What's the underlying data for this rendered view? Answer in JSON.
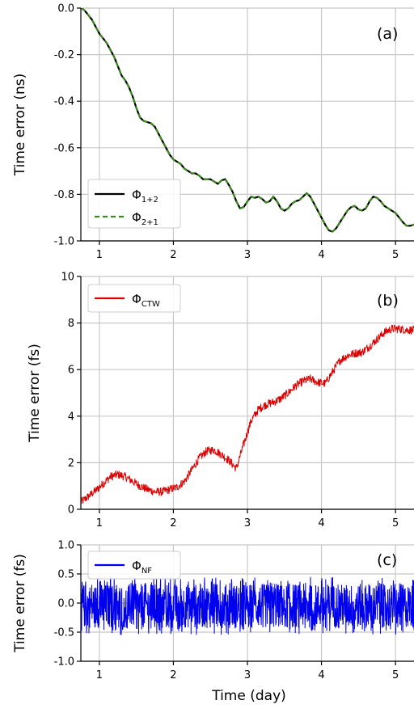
{
  "chart_data": [
    {
      "type": "line",
      "panel_label": "(a)",
      "ylabel": "Time error (ns)",
      "xlabel": "",
      "xlim": [
        0.75,
        5.25
      ],
      "ylim": [
        -1.0,
        0.0
      ],
      "xticks": [
        "1",
        "2",
        "3",
        "4",
        "5"
      ],
      "yticks": [
        "0.0",
        "-0.2",
        "-0.4",
        "-0.6",
        "-0.8",
        "-1.0"
      ],
      "grid": true,
      "legend_position": "lower-left",
      "series": [
        {
          "name": "Φ",
          "name_sub": "1+2",
          "color": "#000000",
          "style": "solid",
          "x": [
            0.76,
            0.8,
            0.85,
            0.9,
            0.95,
            1.0,
            1.05,
            1.1,
            1.15,
            1.2,
            1.25,
            1.3,
            1.35,
            1.4,
            1.45,
            1.5,
            1.55,
            1.6,
            1.65,
            1.7,
            1.75,
            1.8,
            1.85,
            1.9,
            1.95,
            2.0,
            2.05,
            2.1,
            2.15,
            2.2,
            2.25,
            2.3,
            2.35,
            2.4,
            2.45,
            2.5,
            2.55,
            2.6,
            2.65,
            2.7,
            2.75,
            2.8,
            2.85,
            2.9,
            2.95,
            3.0,
            3.05,
            3.1,
            3.15,
            3.2,
            3.25,
            3.3,
            3.35,
            3.4,
            3.45,
            3.5,
            3.55,
            3.6,
            3.65,
            3.7,
            3.75,
            3.8,
            3.85,
            3.9,
            3.95,
            4.0,
            4.05,
            4.1,
            4.15,
            4.2,
            4.25,
            4.3,
            4.35,
            4.4,
            4.45,
            4.5,
            4.55,
            4.6,
            4.65,
            4.7,
            4.75,
            4.8,
            4.85,
            4.9,
            4.95,
            5.0,
            5.05,
            5.1,
            5.15,
            5.2,
            5.25
          ],
          "y": [
            0.0,
            -0.01,
            -0.03,
            -0.05,
            -0.08,
            -0.11,
            -0.13,
            -0.15,
            -0.18,
            -0.21,
            -0.25,
            -0.29,
            -0.31,
            -0.34,
            -0.38,
            -0.43,
            -0.47,
            -0.485,
            -0.49,
            -0.495,
            -0.51,
            -0.54,
            -0.57,
            -0.6,
            -0.63,
            -0.65,
            -0.66,
            -0.67,
            -0.69,
            -0.7,
            -0.71,
            -0.71,
            -0.72,
            -0.735,
            -0.735,
            -0.735,
            -0.745,
            -0.755,
            -0.74,
            -0.735,
            -0.76,
            -0.79,
            -0.83,
            -0.86,
            -0.855,
            -0.83,
            -0.81,
            -0.815,
            -0.81,
            -0.82,
            -0.835,
            -0.83,
            -0.81,
            -0.83,
            -0.86,
            -0.87,
            -0.86,
            -0.84,
            -0.83,
            -0.825,
            -0.81,
            -0.795,
            -0.81,
            -0.84,
            -0.87,
            -0.9,
            -0.93,
            -0.955,
            -0.96,
            -0.945,
            -0.92,
            -0.895,
            -0.87,
            -0.855,
            -0.85,
            -0.865,
            -0.87,
            -0.86,
            -0.83,
            -0.81,
            -0.815,
            -0.83,
            -0.85,
            -0.86,
            -0.87,
            -0.88,
            -0.9,
            -0.92,
            -0.935,
            -0.935,
            -0.93
          ]
        },
        {
          "name": "Φ",
          "name_sub": "2+1",
          "color": "#3a8a1c",
          "style": "dashed",
          "same_as_series": 0
        }
      ]
    },
    {
      "type": "line",
      "panel_label": "(b)",
      "ylabel": "Time error (fs)",
      "xlabel": "",
      "xlim": [
        0.75,
        5.25
      ],
      "ylim": [
        0,
        10
      ],
      "xticks": [
        "1",
        "2",
        "3",
        "4",
        "5"
      ],
      "yticks": [
        "0",
        "2",
        "4",
        "6",
        "8",
        "10"
      ],
      "grid": true,
      "legend_position": "top-left",
      "series": [
        {
          "name": "Φ",
          "name_sub": "CTW",
          "color": "#dd0000",
          "style": "solid",
          "noise_amplitude": 0.18,
          "x": [
            0.75,
            0.85,
            0.95,
            1.05,
            1.15,
            1.25,
            1.35,
            1.45,
            1.55,
            1.65,
            1.75,
            1.85,
            1.95,
            2.05,
            2.15,
            2.25,
            2.35,
            2.45,
            2.55,
            2.65,
            2.75,
            2.85,
            2.95,
            3.05,
            3.15,
            3.25,
            3.35,
            3.45,
            3.55,
            3.65,
            3.75,
            3.85,
            3.95,
            4.05,
            4.15,
            4.25,
            4.35,
            4.45,
            4.55,
            4.65,
            4.75,
            4.85,
            4.95,
            5.05,
            5.15,
            5.25
          ],
          "y": [
            0.3,
            0.55,
            0.8,
            1.1,
            1.4,
            1.5,
            1.4,
            1.2,
            1.0,
            0.85,
            0.75,
            0.75,
            0.85,
            0.95,
            1.2,
            1.7,
            2.2,
            2.5,
            2.55,
            2.35,
            2.1,
            1.75,
            2.8,
            3.8,
            4.3,
            4.5,
            4.6,
            4.75,
            5.0,
            5.3,
            5.5,
            5.6,
            5.45,
            5.4,
            5.9,
            6.4,
            6.6,
            6.7,
            6.75,
            7.0,
            7.3,
            7.6,
            7.75,
            7.75,
            7.7,
            7.7
          ]
        }
      ]
    },
    {
      "type": "line",
      "panel_label": "(c)",
      "ylabel": "Time error (fs)",
      "xlabel": "Time (day)",
      "xlim": [
        0.75,
        5.25
      ],
      "ylim": [
        -1.0,
        1.0
      ],
      "xticks": [
        "1",
        "2",
        "3",
        "4",
        "5"
      ],
      "yticks": [
        "1.0",
        "0.5",
        "0.0",
        "-0.5",
        "-1.0"
      ],
      "grid": true,
      "legend_position": "top-left",
      "series": [
        {
          "name": "Φ",
          "name_sub": "NF",
          "color": "#0000ee",
          "style": "solid",
          "mean": -0.05,
          "noise_band": [
            -0.55,
            0.45
          ]
        }
      ]
    }
  ]
}
